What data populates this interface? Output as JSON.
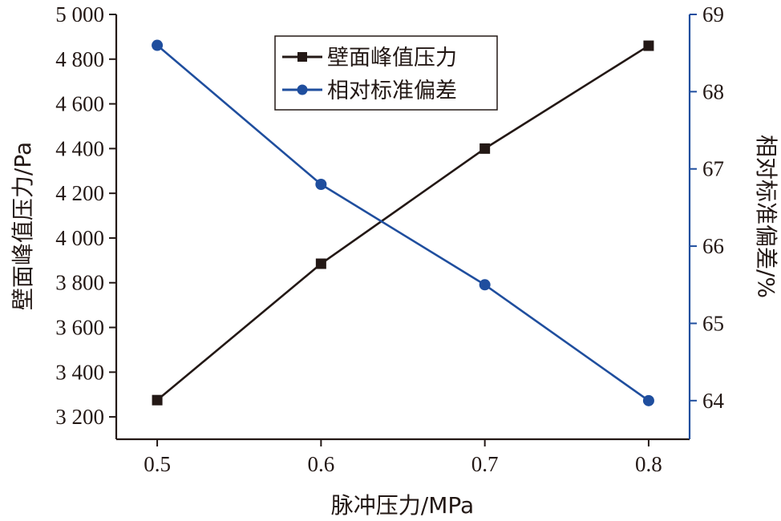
{
  "chart_data": {
    "type": "line",
    "x": [
      0.5,
      0.6,
      0.7,
      0.8
    ],
    "x_ticks": [
      "0.5",
      "0.6",
      "0.7",
      "0.8"
    ],
    "xlim": [
      0.475,
      0.825
    ],
    "xlabel": "脉冲压力/MPa",
    "ylabel_left": "壁面峰值压力/Pa",
    "ylabel_right": "相对标准偏差/%",
    "ylim_left": [
      3100,
      5000
    ],
    "ylim_right": [
      63.5,
      69
    ],
    "y_ticks_left": [
      {
        "value": 3200,
        "label": "3 200"
      },
      {
        "value": 3400,
        "label": "3 400"
      },
      {
        "value": 3600,
        "label": "3 600"
      },
      {
        "value": 3800,
        "label": "3 800"
      },
      {
        "value": 4000,
        "label": "4 000"
      },
      {
        "value": 4200,
        "label": "4 200"
      },
      {
        "value": 4400,
        "label": "4 400"
      },
      {
        "value": 4600,
        "label": "4 600"
      },
      {
        "value": 4800,
        "label": "4 800"
      },
      {
        "value": 5000,
        "label": "5 000"
      }
    ],
    "y_ticks_right": [
      {
        "value": 64,
        "label": "64"
      },
      {
        "value": 65,
        "label": "65"
      },
      {
        "value": 66,
        "label": "66"
      },
      {
        "value": 67,
        "label": "67"
      },
      {
        "value": 68,
        "label": "68"
      },
      {
        "value": 69,
        "label": "69"
      }
    ],
    "series": [
      {
        "name": "壁面峰值压力",
        "axis": "left",
        "marker": "square",
        "color": "#231815",
        "values": [
          3275,
          3885,
          4400,
          4860
        ]
      },
      {
        "name": "相对标准偏差",
        "axis": "right",
        "marker": "circle",
        "color": "#1f4e9e",
        "values": [
          68.6,
          66.8,
          65.5,
          64.0
        ]
      }
    ],
    "legend_position": "top-center",
    "grid": false
  }
}
